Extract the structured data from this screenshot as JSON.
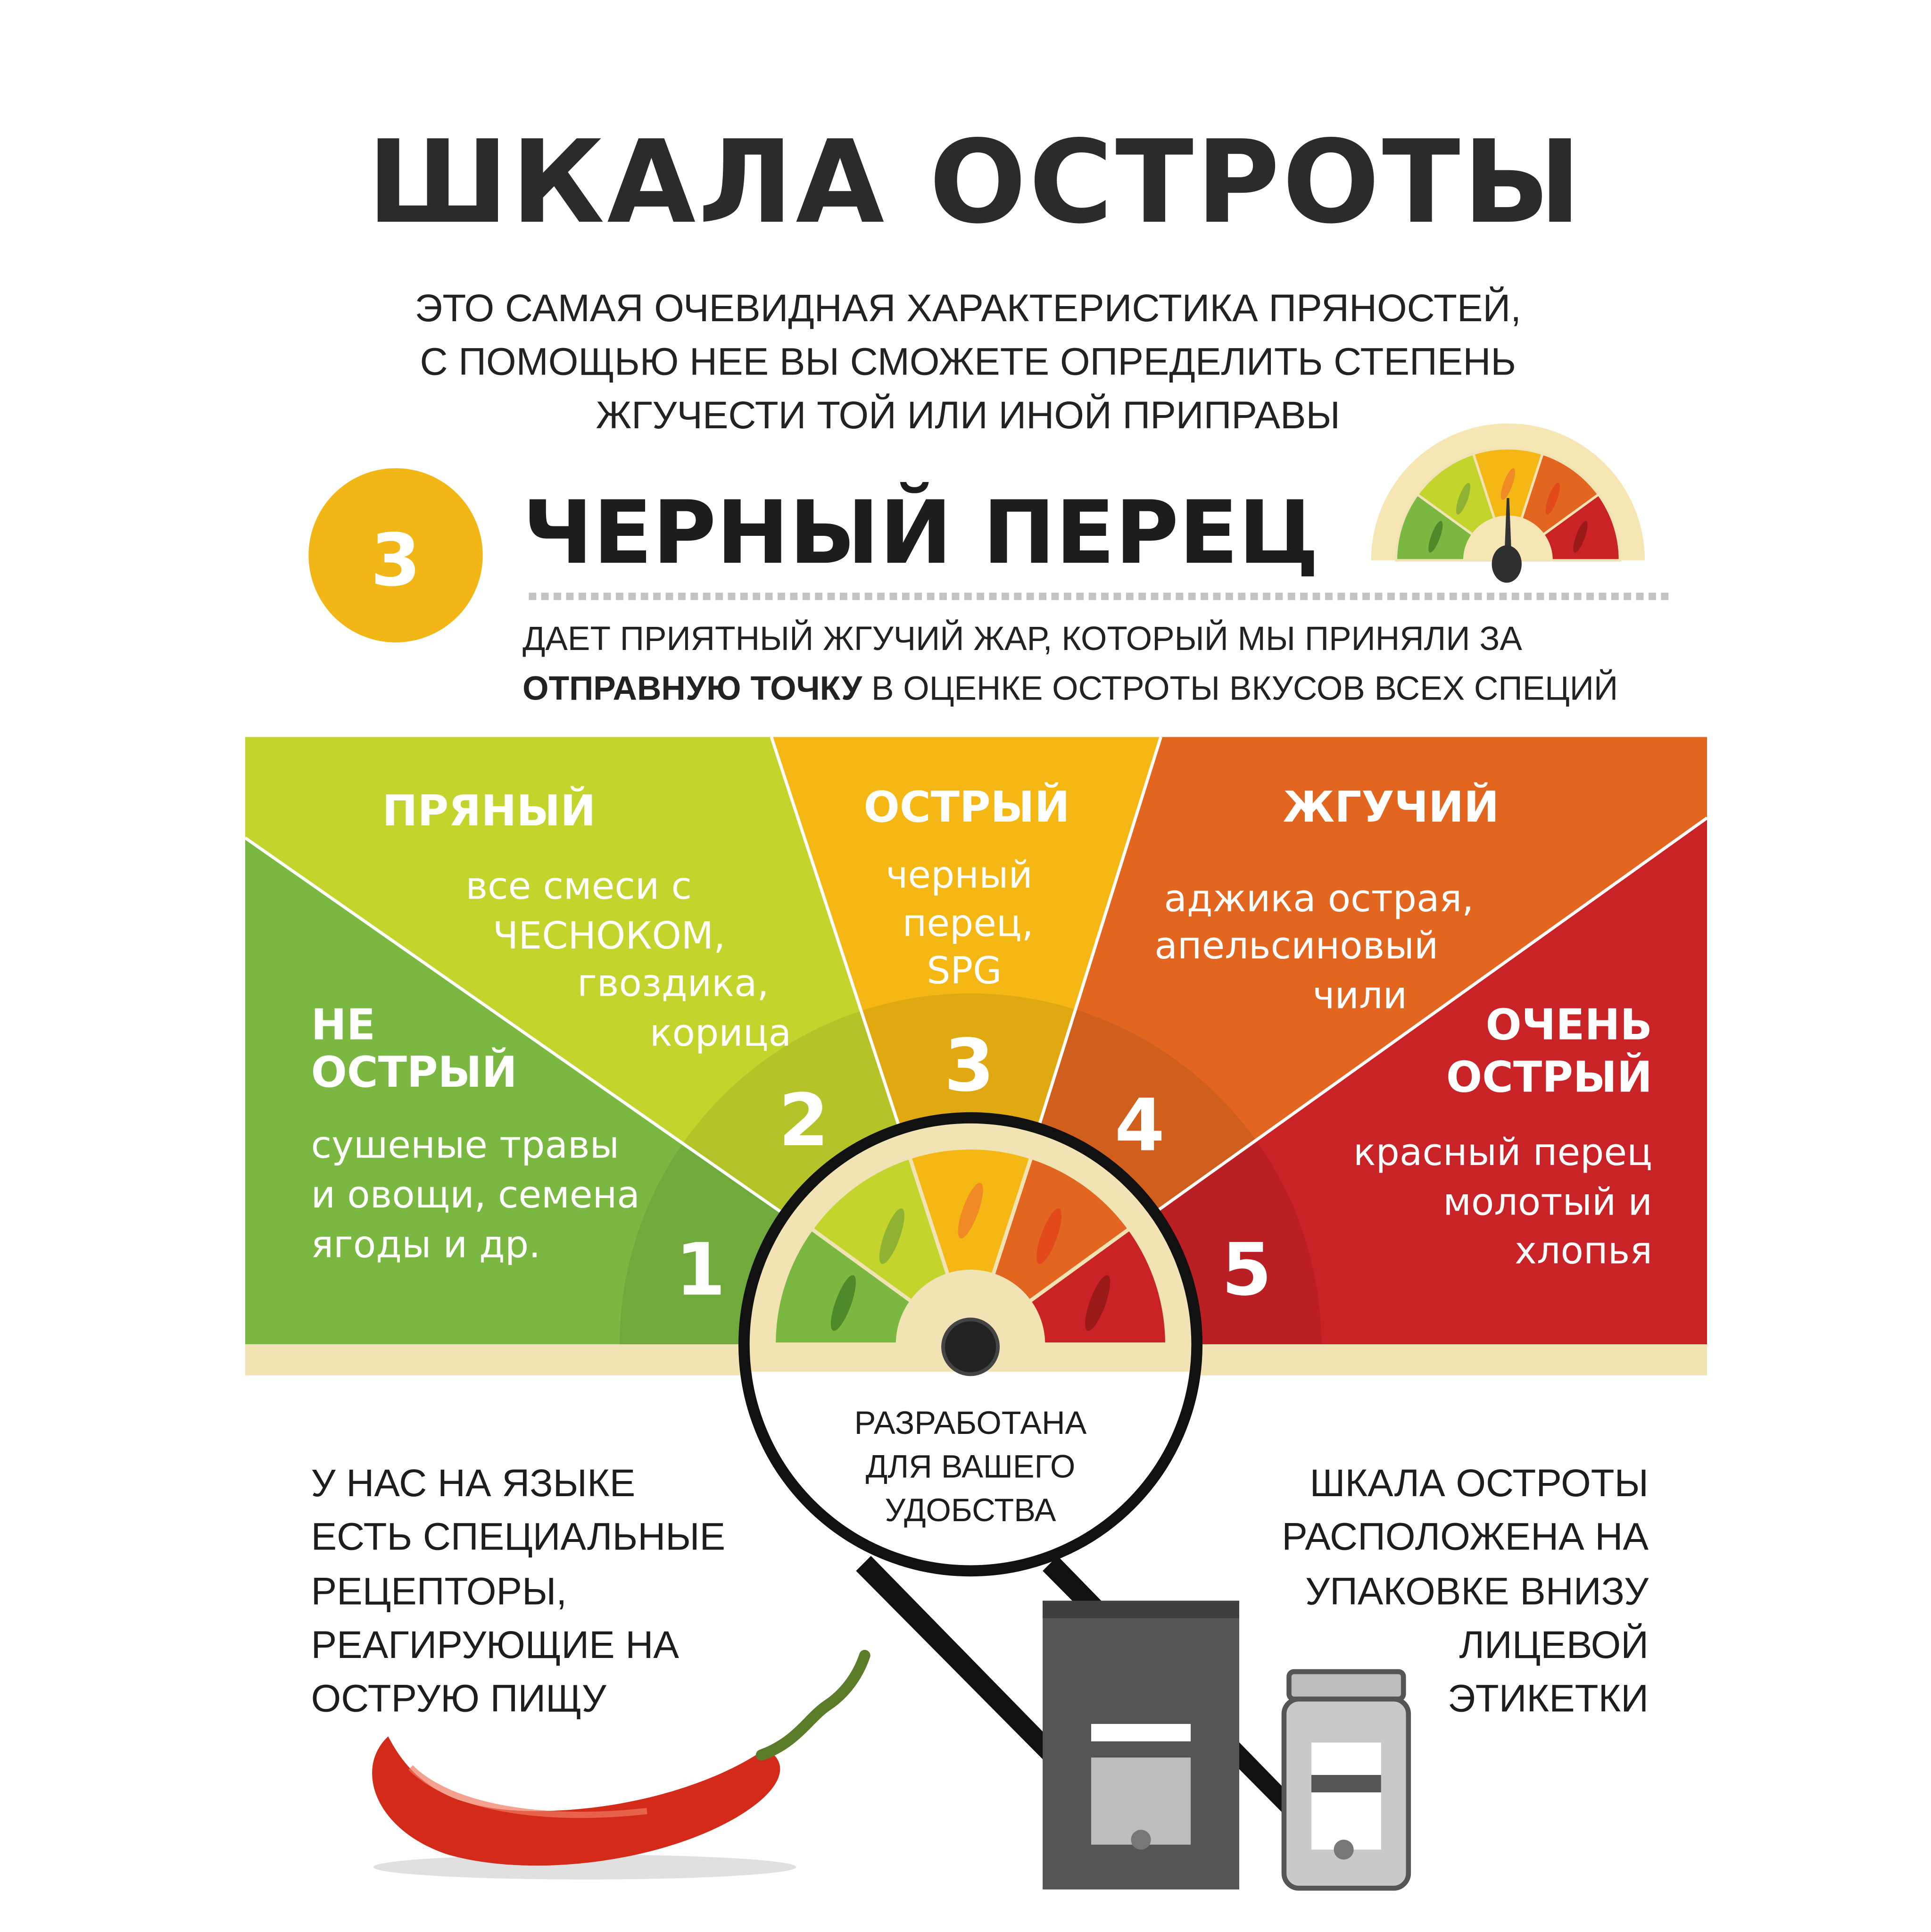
{
  "title": "ШКАЛА ОСТРОТЫ",
  "intro": [
    "ЭТО САМАЯ ОЧЕВИДНАЯ ХАРАКТЕРИСТИКА ПРЯНОСТЕЙ,",
    "С ПОМОЩЬЮ НЕЕ ВЫ СМОЖЕТЕ ОПРЕДЕЛИТЬ СТЕПЕНЬ",
    "ЖГУЧЕСТИ ТОЙ ИЛИ ИНОЙ ПРИПРАВЫ"
  ],
  "product": {
    "level": "3",
    "name": "ЧЕРНЫЙ ПЕРЕЦ",
    "gauge_level": 3,
    "description_line1": "ДАЕТ ПРИЯТНЫЙ ЖГУЧИЙ ЖАР, КОТОРЫЙ МЫ ПРИНЯЛИ ЗА",
    "description_bold": "ОТПРАВНУЮ ТОЧКУ",
    "description_line2_rest": " В ОЦЕНКЕ ОСТРОТЫ ВКУСОВ ВСЕХ СПЕЦИЙ"
  },
  "scale": [
    {
      "level": "1",
      "name_lines": [
        "НЕ",
        "ОСТРЫЙ"
      ],
      "examples": [
        "сушеные травы",
        "и овощи, семена",
        "ягоды и др."
      ],
      "color": "#7ab842"
    },
    {
      "level": "2",
      "name_lines": [
        "ПРЯНЫЙ"
      ],
      "examples": [
        "все смеси с",
        "ЧЕСНОКОМ,",
        "гвоздика,",
        "корица"
      ],
      "color": "#c3d42c"
    },
    {
      "level": "3",
      "name_lines": [
        "ОСТРЫЙ"
      ],
      "examples": [
        "черный",
        "перец,",
        "SPG"
      ],
      "color": "#f4b713"
    },
    {
      "level": "4",
      "name_lines": [
        "ЖГУЧИЙ"
      ],
      "examples": [
        "аджика острая,",
        "апельсиновый",
        "чили"
      ],
      "color": "#e2661f"
    },
    {
      "level": "5",
      "name_lines": [
        "ОЧЕНЬ",
        "ОСТРЫЙ"
      ],
      "examples": [
        "красный перец",
        "молотый и",
        "хлопья"
      ],
      "color": "#c92227"
    }
  ],
  "magnifier_text": [
    "РАЗРАБОТАНА",
    "ДЛЯ ВАШЕГО",
    "УДОБСТВА"
  ],
  "left_note": [
    "У НАС НА ЯЗЫКЕ",
    "ЕСТЬ СПЕЦИАЛЬНЫЕ",
    "РЕЦЕПТОРЫ,",
    "РЕАГИРУЮЩИЕ НА",
    "ОСТРУЮ ПИЩУ"
  ],
  "right_note": [
    "ШКАЛА ОСТРОТЫ",
    "РАСПОЛОЖЕНА НА",
    "УПАКОВКЕ ВНИЗУ",
    "ЛИЦЕВОЙ",
    "ЭТИКЕТКИ"
  ],
  "colors": {
    "accent_yellow": "#f2b716",
    "beige": "#f2e3b5",
    "dark": "#2b2b2b"
  }
}
